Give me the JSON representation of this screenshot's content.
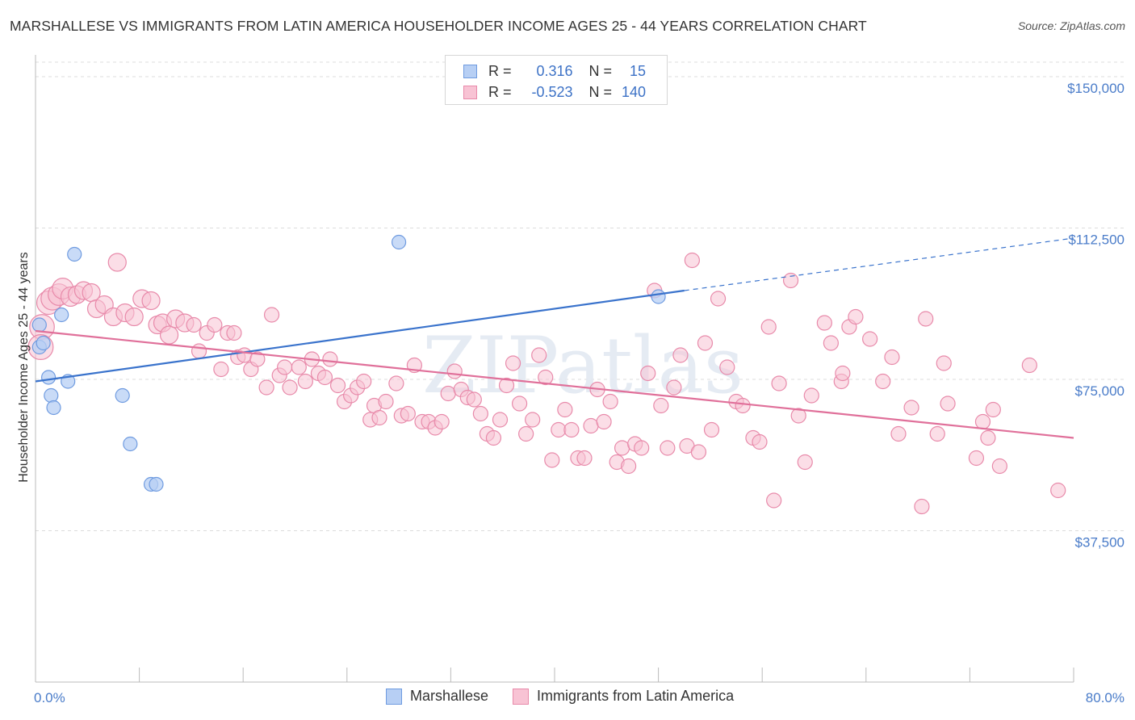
{
  "title": "MARSHALLESE VS IMMIGRANTS FROM LATIN AMERICA HOUSEHOLDER INCOME AGES 25 - 44 YEARS CORRELATION CHART",
  "source": "Source: ZipAtlas.com",
  "watermark": "ZIPatlas",
  "colors": {
    "blue_fill": "#b7cff4",
    "blue_stroke": "#6f9be0",
    "blue_line": "#3a73cc",
    "pink_fill": "#f8c3d4",
    "pink_stroke": "#e88aaa",
    "pink_line": "#e0709a",
    "grid": "#dcdcdc",
    "tick_text": "#4a7cc9"
  },
  "legend": {
    "rows": [
      {
        "r_label": "R =",
        "r_value": "0.316",
        "n_label": "N =",
        "n_value": "15"
      },
      {
        "r_label": "R =",
        "r_value": "-0.523",
        "n_label": "N =",
        "n_value": "140"
      }
    ]
  },
  "chart_data": {
    "type": "scatter",
    "title": "MARSHALLESE VS IMMIGRANTS FROM LATIN AMERICA HOUSEHOLDER INCOME AGES 25 - 44 YEARS CORRELATION CHART",
    "xlabel": "",
    "ylabel": "Householder Income Ages 25 - 44 years",
    "xlim": [
      0,
      80
    ],
    "ylim": [
      0,
      157000
    ],
    "x_tick_labels": [
      "0.0%",
      "80.0%"
    ],
    "y_ticks": [
      37500,
      75000,
      112500,
      150000
    ],
    "y_tick_labels": [
      "$37,500",
      "$75,000",
      "$112,500",
      "$150,000"
    ],
    "grid": true,
    "legend_position": "top-center",
    "series": [
      {
        "name": "Marshallese",
        "r": 0.316,
        "n": 15,
        "points": [
          [
            0.3,
            88500
          ],
          [
            0.3,
            83000
          ],
          [
            1.0,
            75500
          ],
          [
            1.2,
            71000
          ],
          [
            1.4,
            68000
          ],
          [
            2.0,
            91000
          ],
          [
            2.5,
            74500
          ],
          [
            3.0,
            106000
          ],
          [
            6.7,
            71000
          ],
          [
            7.3,
            59000
          ],
          [
            8.9,
            49000
          ],
          [
            9.3,
            49000
          ],
          [
            28.0,
            109000
          ],
          [
            48.0,
            95500
          ],
          [
            0.6,
            84000
          ]
        ],
        "trend": {
          "x": [
            0,
            50
          ],
          "y": [
            74500,
            97000
          ],
          "dashed_extension_to": [
            80,
            110000
          ]
        }
      },
      {
        "name": "Immigrants from Latin America",
        "r": -0.523,
        "n": 140,
        "points": [
          [
            0.5,
            88000
          ],
          [
            0.4,
            83000
          ],
          [
            1.0,
            94000
          ],
          [
            1.3,
            95000
          ],
          [
            1.8,
            96000
          ],
          [
            2.1,
            97500
          ],
          [
            2.7,
            95500
          ],
          [
            3.2,
            96000
          ],
          [
            3.7,
            97000
          ],
          [
            4.3,
            96500
          ],
          [
            4.7,
            92500
          ],
          [
            5.3,
            93500
          ],
          [
            6.0,
            90500
          ],
          [
            6.3,
            104000
          ],
          [
            6.9,
            91500
          ],
          [
            7.6,
            90500
          ],
          [
            8.2,
            95000
          ],
          [
            8.9,
            94500
          ],
          [
            9.4,
            88500
          ],
          [
            9.8,
            89000
          ],
          [
            10.3,
            86000
          ],
          [
            10.8,
            90000
          ],
          [
            11.5,
            89000
          ],
          [
            12.2,
            88500
          ],
          [
            12.6,
            82000
          ],
          [
            13.2,
            86500
          ],
          [
            13.8,
            88500
          ],
          [
            14.3,
            77500
          ],
          [
            14.8,
            86500
          ],
          [
            15.3,
            86500
          ],
          [
            15.6,
            80500
          ],
          [
            16.1,
            81000
          ],
          [
            16.6,
            77500
          ],
          [
            17.1,
            80000
          ],
          [
            17.8,
            73000
          ],
          [
            18.2,
            91000
          ],
          [
            18.8,
            76000
          ],
          [
            19.2,
            78000
          ],
          [
            19.6,
            73000
          ],
          [
            20.3,
            78000
          ],
          [
            20.8,
            74500
          ],
          [
            21.3,
            80000
          ],
          [
            21.8,
            76500
          ],
          [
            22.3,
            75500
          ],
          [
            22.7,
            80000
          ],
          [
            23.3,
            73500
          ],
          [
            23.8,
            69500
          ],
          [
            24.3,
            71000
          ],
          [
            24.8,
            73000
          ],
          [
            25.3,
            74500
          ],
          [
            25.8,
            65000
          ],
          [
            26.1,
            68500
          ],
          [
            26.5,
            65500
          ],
          [
            27.0,
            69500
          ],
          [
            27.8,
            74000
          ],
          [
            28.2,
            66000
          ],
          [
            28.7,
            66500
          ],
          [
            29.2,
            78500
          ],
          [
            29.8,
            64500
          ],
          [
            30.3,
            64500
          ],
          [
            30.8,
            63000
          ],
          [
            31.3,
            64500
          ],
          [
            31.8,
            71500
          ],
          [
            32.3,
            77000
          ],
          [
            32.8,
            72500
          ],
          [
            33.3,
            70500
          ],
          [
            33.8,
            70000
          ],
          [
            34.3,
            66500
          ],
          [
            34.8,
            61500
          ],
          [
            35.3,
            60500
          ],
          [
            35.8,
            65000
          ],
          [
            36.3,
            73500
          ],
          [
            36.8,
            79000
          ],
          [
            37.3,
            69000
          ],
          [
            37.8,
            61500
          ],
          [
            38.3,
            65000
          ],
          [
            38.8,
            81000
          ],
          [
            39.3,
            75500
          ],
          [
            39.8,
            55000
          ],
          [
            40.3,
            62500
          ],
          [
            40.8,
            67500
          ],
          [
            41.3,
            62500
          ],
          [
            41.8,
            55500
          ],
          [
            42.3,
            55500
          ],
          [
            42.8,
            63500
          ],
          [
            43.3,
            72500
          ],
          [
            43.8,
            64500
          ],
          [
            44.3,
            69500
          ],
          [
            44.8,
            54500
          ],
          [
            45.2,
            58000
          ],
          [
            45.7,
            53500
          ],
          [
            46.2,
            59000
          ],
          [
            46.7,
            58000
          ],
          [
            47.2,
            76500
          ],
          [
            47.7,
            97000
          ],
          [
            48.2,
            68500
          ],
          [
            48.7,
            58000
          ],
          [
            49.2,
            73000
          ],
          [
            49.7,
            81000
          ],
          [
            50.2,
            58500
          ],
          [
            50.6,
            104500
          ],
          [
            51.1,
            57000
          ],
          [
            51.6,
            84000
          ],
          [
            52.1,
            62500
          ],
          [
            52.6,
            95000
          ],
          [
            53.3,
            78000
          ],
          [
            54.0,
            69500
          ],
          [
            54.5,
            68500
          ],
          [
            55.3,
            60500
          ],
          [
            55.8,
            59500
          ],
          [
            56.5,
            88000
          ],
          [
            56.9,
            45000
          ],
          [
            57.3,
            74000
          ],
          [
            58.2,
            99500
          ],
          [
            58.8,
            66000
          ],
          [
            59.3,
            54500
          ],
          [
            59.8,
            71000
          ],
          [
            60.8,
            89000
          ],
          [
            61.3,
            84000
          ],
          [
            62.1,
            74500
          ],
          [
            62.2,
            76500
          ],
          [
            62.7,
            88000
          ],
          [
            63.2,
            90500
          ],
          [
            64.3,
            85000
          ],
          [
            65.3,
            74500
          ],
          [
            66.0,
            80500
          ],
          [
            66.5,
            61500
          ],
          [
            67.5,
            68000
          ],
          [
            68.3,
            43500
          ],
          [
            68.6,
            90000
          ],
          [
            69.5,
            61500
          ],
          [
            70.0,
            79000
          ],
          [
            70.3,
            69000
          ],
          [
            72.5,
            55500
          ],
          [
            73.0,
            64500
          ],
          [
            73.4,
            60500
          ],
          [
            73.8,
            67500
          ],
          [
            74.3,
            53500
          ],
          [
            76.6,
            78500
          ],
          [
            78.8,
            47500
          ]
        ],
        "trend": {
          "x": [
            0,
            80
          ],
          "y": [
            87000,
            60500
          ]
        }
      }
    ]
  },
  "bottom_legend": [
    "Marshallese",
    "Immigrants from Latin America"
  ]
}
